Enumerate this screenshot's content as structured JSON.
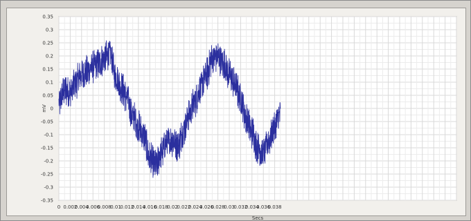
{
  "chart_data": {
    "type": "line",
    "title": "",
    "xlabel": "Secs",
    "ylabel": "mV",
    "xlim": [
      0,
      0.07
    ],
    "ylim": [
      -0.35,
      0.35
    ],
    "grid": true,
    "y_ticks": [
      "0.35",
      "0.3",
      "0.25",
      "0.2",
      "0.15",
      "0.1",
      "0.05",
      "0",
      "-0.05",
      "-0.1",
      "-0.15",
      "-0.2",
      "-0.25",
      "-0.3",
      "-0.35"
    ],
    "x_ticks": [
      "0",
      "0.002",
      "0.004",
      "0.006",
      "0.008",
      "0.01",
      "0.012",
      "0.014",
      "0.016",
      "0.018",
      "0.02",
      "0.022",
      "0.024",
      "0.026",
      "0.028",
      "0.03",
      "0.032",
      "0.034",
      "0.036",
      "0.038"
    ],
    "x_tick_values": [
      0,
      0.002,
      0.004,
      0.006,
      0.008,
      0.01,
      0.012,
      0.014,
      0.016,
      0.018,
      0.02,
      0.022,
      0.024,
      0.026,
      0.028,
      0.03,
      0.032,
      0.034,
      0.036,
      0.038
    ],
    "x_tick_labels_as_printed": "0  0.0020.0040.0060.0080.010.0120.0140.0160.0180.020.0220.0240.0260.0280.030.0320.0340.0360.038",
    "series": [
      {
        "color": "#2b2f9e",
        "x": [
          0,
          0.001,
          0.002,
          0.003,
          0.004,
          0.005,
          0.006,
          0.007,
          0.008,
          0.009,
          0.01,
          0.011,
          0.012,
          0.013,
          0.014,
          0.015,
          0.016,
          0.017,
          0.018,
          0.019,
          0.02,
          0.021,
          0.022,
          0.023,
          0.024,
          0.025,
          0.026,
          0.027,
          0.028,
          0.029,
          0.03,
          0.031,
          0.032,
          0.033,
          0.034,
          0.035,
          0.036,
          0.037,
          0.038,
          0.039
        ],
        "y": [
          0.02,
          0.07,
          0.06,
          0.1,
          0.13,
          0.14,
          0.16,
          0.17,
          0.19,
          0.21,
          0.12,
          0.08,
          0.04,
          -0.03,
          -0.07,
          -0.11,
          -0.19,
          -0.22,
          -0.17,
          -0.13,
          -0.12,
          -0.14,
          -0.08,
          -0.02,
          0.03,
          0.08,
          0.13,
          0.19,
          0.2,
          0.17,
          0.13,
          0.09,
          0.04,
          -0.04,
          -0.09,
          -0.15,
          -0.17,
          -0.12,
          -0.07,
          -0.02
        ]
      }
    ]
  }
}
